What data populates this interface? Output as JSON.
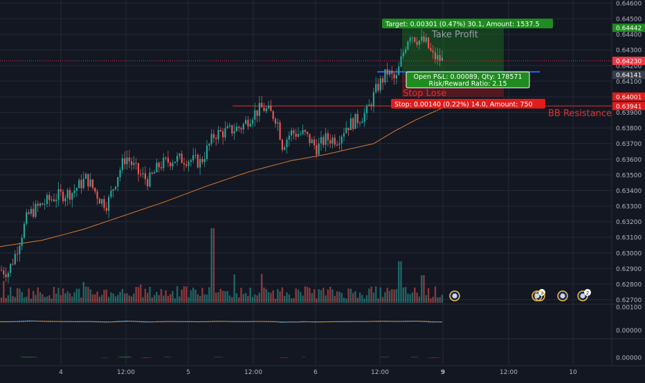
{
  "colors": {
    "background": "#131722",
    "grid": "#242a38",
    "axis_text": "#b2b5be",
    "candle_up": "#26a69a",
    "candle_down": "#ef5350",
    "ma_line": "#d87a30",
    "macd_line": "#2196f3",
    "signal_line": "#ff9800",
    "hist_pos": "#1b9e1b",
    "hist_neg": "#e01010",
    "target_green": "#1e8c1e",
    "stop_red": "#e21b1b",
    "resistance_red": "#e23030",
    "price_line": "#f23645"
  },
  "chart_data": {
    "type": "candlestick",
    "price_axis": {
      "ticks": [
        "0.64600",
        "0.64500",
        "0.64400",
        "0.64300",
        "0.64200",
        "0.64100",
        "0.64000",
        "0.63900",
        "0.63800",
        "0.63700",
        "0.63600",
        "0.63500",
        "0.63400",
        "0.63300",
        "0.63200",
        "0.63100",
        "0.63000",
        "0.62900",
        "0.62800",
        "0.62700"
      ],
      "range": [
        0.6268,
        0.6462
      ]
    },
    "time_axis": {
      "ticks": [
        "4",
        "12:00",
        "5",
        "12:00",
        "6",
        "12:00",
        "9",
        "12:00",
        "10"
      ],
      "bold": [
        false,
        false,
        false,
        false,
        false,
        false,
        true,
        false,
        false
      ]
    },
    "price_path_anchors": [
      [
        0,
        0.6289
      ],
      [
        12,
        0.6288
      ],
      [
        22,
        0.6299
      ],
      [
        40,
        0.6324
      ],
      [
        60,
        0.6331
      ],
      [
        80,
        0.6336
      ],
      [
        105,
        0.6339
      ],
      [
        125,
        0.6348
      ],
      [
        145,
        0.6334
      ],
      [
        155,
        0.6331
      ],
      [
        170,
        0.635
      ],
      [
        182,
        0.6362
      ],
      [
        200,
        0.6351
      ],
      [
        215,
        0.6346
      ],
      [
        230,
        0.6356
      ],
      [
        250,
        0.636
      ],
      [
        270,
        0.636
      ],
      [
        290,
        0.6358
      ],
      [
        310,
        0.6376
      ],
      [
        330,
        0.6378
      ],
      [
        350,
        0.6381
      ],
      [
        365,
        0.6389
      ],
      [
        380,
        0.6393
      ],
      [
        395,
        0.6388
      ],
      [
        400,
        0.6386
      ],
      [
        408,
        0.6369
      ],
      [
        420,
        0.6377
      ],
      [
        440,
        0.6376
      ],
      [
        458,
        0.6367
      ],
      [
        470,
        0.6373
      ],
      [
        488,
        0.6373
      ],
      [
        500,
        0.6381
      ],
      [
        515,
        0.6385
      ],
      [
        530,
        0.639
      ],
      [
        545,
        0.6406
      ],
      [
        560,
        0.6416
      ],
      [
        572,
        0.641
      ],
      [
        578,
        0.6421
      ],
      [
        585,
        0.6432
      ],
      [
        592,
        0.6441
      ],
      [
        605,
        0.6436
      ],
      [
        615,
        0.6435
      ],
      [
        625,
        0.6426
      ],
      [
        640,
        0.6423
      ]
    ],
    "moving_average": [
      [
        0,
        0.6304
      ],
      [
        60,
        0.6308
      ],
      [
        120,
        0.6315
      ],
      [
        180,
        0.6324
      ],
      [
        240,
        0.6333
      ],
      [
        300,
        0.6343
      ],
      [
        360,
        0.6352
      ],
      [
        420,
        0.6359
      ],
      [
        470,
        0.6363
      ],
      [
        510,
        0.6367
      ],
      [
        540,
        0.637
      ],
      [
        570,
        0.6378
      ],
      [
        600,
        0.6385
      ],
      [
        640,
        0.6393
      ]
    ],
    "trade": {
      "target_price": 0.64442,
      "entry_price": 0.64141,
      "stop_price": 0.64001,
      "current_price": 0.6423,
      "resistance_price": 0.63941
    },
    "price_labels": [
      {
        "text": "0.64442",
        "price": 0.64442,
        "color": "#1e8c1e"
      },
      {
        "text": "0.64230",
        "price": 0.6423,
        "color": "#f23645"
      },
      {
        "text": "0.64141",
        "price": 0.64141,
        "color": "#3a3e4b"
      },
      {
        "text": "0.64001",
        "price": 0.64001,
        "color": "#e21b1b"
      },
      {
        "text": "0.63941",
        "price": 0.63941,
        "color": "#e21b1b"
      }
    ],
    "annotations": {
      "target_box": "Target: 0.00301 (0.47%) 30.1, Amount: 1537.5",
      "take_profit": "Take Profit",
      "pnl_line1": "Open P&L: 0.00089, Qty: 178571",
      "pnl_line2": "Risk/Reward Ratio: 2.15",
      "stop_loss": "Stop Lose",
      "stop_box": "Stop: 0.00140 (0.22%) 14.0, Amount: 750",
      "bb_resistance": "BB Resistance"
    },
    "event_markers": [
      {
        "badge": ""
      },
      {
        "badge": "3"
      },
      {
        "badge": ""
      },
      {
        "badge": "2"
      }
    ],
    "macd_axis": [
      "0.00100",
      "0.00000"
    ],
    "histogram_axis": [
      "0.00000"
    ]
  }
}
